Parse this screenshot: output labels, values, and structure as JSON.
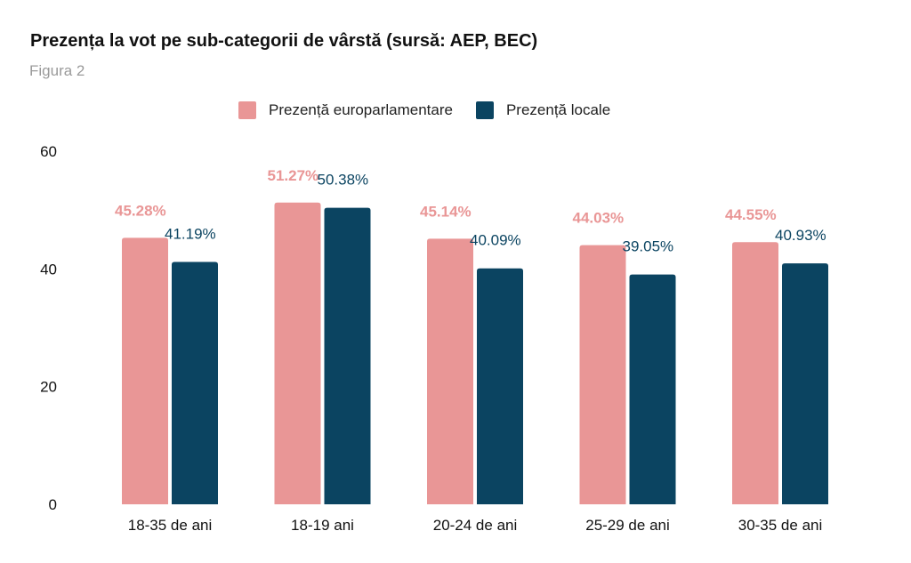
{
  "chart_data": {
    "type": "bar",
    "title": "Prezența la vot pe sub-categorii de vârstă (sursă: AEP, BEC)",
    "subtitle": "Figura 2",
    "xlabel": "",
    "ylabel": "",
    "ylim": [
      0,
      60
    ],
    "yticks": [
      0,
      20,
      40,
      60
    ],
    "grid": false,
    "legend_position": "top-center",
    "categories": [
      "18-35 de ani",
      "18-19 ani",
      "20-24 de ani",
      "25-29 de ani",
      "30-35 de ani"
    ],
    "series": [
      {
        "name": "Prezență europarlamentare",
        "color": "#E99696",
        "values": [
          45.28,
          51.27,
          45.14,
          44.03,
          44.55
        ],
        "labels": [
          "45.28%",
          "51.27%",
          "45.14%",
          "44.03%",
          "44.55%"
        ]
      },
      {
        "name": "Prezență locale",
        "color": "#0B4461",
        "values": [
          41.19,
          50.38,
          40.09,
          39.05,
          40.93
        ],
        "labels": [
          "41.19%",
          "50.38%",
          "40.09%",
          "39.05%",
          "40.93%"
        ]
      }
    ]
  }
}
